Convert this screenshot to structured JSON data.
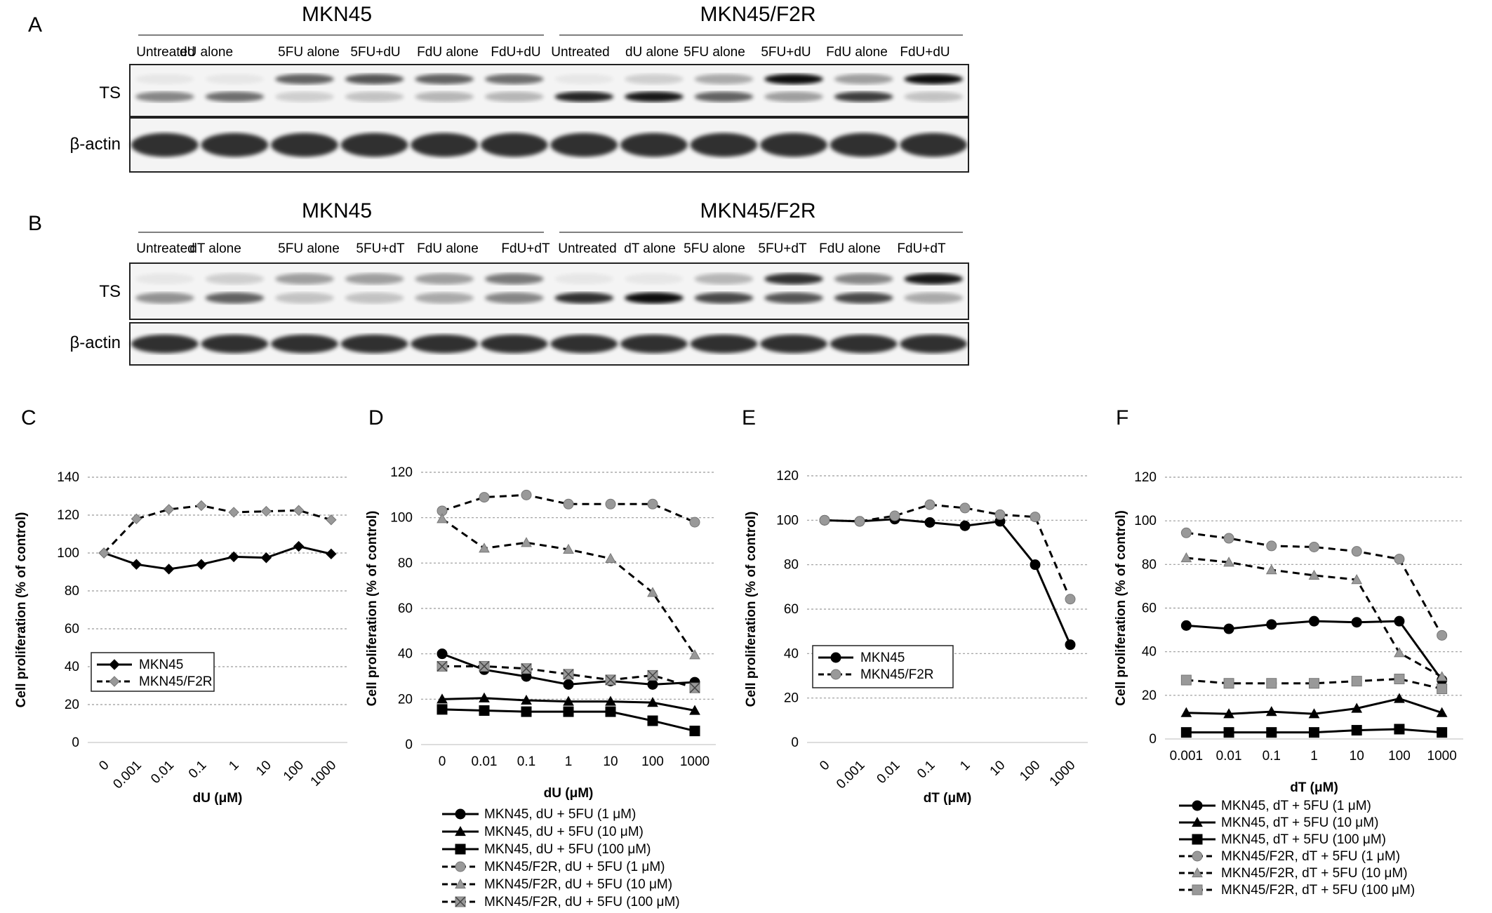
{
  "blots": [
    {
      "panel": "A",
      "groups": [
        "MKN45",
        "MKN45/F2R"
      ],
      "lanes": [
        "Untreated",
        "dU alone",
        "5FU alone",
        "5FU+dU",
        "FdU alone",
        "FdU+dU",
        "Untreated",
        "dU alone",
        "5FU alone",
        "5FU+dU",
        "FdU alone",
        "FdU+dU"
      ],
      "rows": [
        "TS",
        "β-actin"
      ]
    },
    {
      "panel": "B",
      "groups": [
        "MKN45",
        "MKN45/F2R"
      ],
      "lanes": [
        "Untreated",
        "dT alone",
        "5FU alone",
        "5FU+dT",
        "FdU alone",
        "FdU+dT",
        "Untreated",
        "dT alone",
        "5FU alone",
        "5FU+dT",
        "FdU alone",
        "FdU+dT"
      ],
      "rows": [
        "TS",
        "β-actin"
      ]
    }
  ],
  "chart_data": [
    {
      "panel": "C",
      "type": "line",
      "categories": [
        "0",
        "0.001",
        "0.01",
        "0.1",
        "1",
        "10",
        "100",
        "1000"
      ],
      "xlabel": "dU (μM)",
      "ylabel": "Cell proliferation (% of control)",
      "ylim": [
        0,
        140
      ],
      "yticks": [
        0,
        20,
        40,
        60,
        80,
        100,
        120,
        140
      ],
      "grid": true,
      "legend": "bottom-left inside",
      "series": [
        {
          "name": "MKN45",
          "values": [
            100,
            94,
            91.5,
            94,
            98,
            97.5,
            103.5,
            99.5
          ],
          "color": "#000000",
          "dash": false,
          "marker": "diamond"
        },
        {
          "name": "MKN45/F2R",
          "values": [
            100,
            118,
            123,
            125,
            121.5,
            122,
            122.5,
            117.5
          ],
          "color": "#999999",
          "dash": true,
          "marker": "diamond"
        }
      ]
    },
    {
      "panel": "D",
      "type": "line",
      "categories": [
        "0",
        "0.01",
        "0.1",
        "1",
        "10",
        "100",
        "1000"
      ],
      "xlabel": "dU (μM)",
      "ylabel": "Cell proliferation (% of control)",
      "ylim": [
        0,
        120
      ],
      "yticks": [
        0,
        20,
        40,
        60,
        80,
        100,
        120
      ],
      "grid": true,
      "legend": "below",
      "series": [
        {
          "name": "MKN45, dU + 5FU (1 μM)",
          "values": [
            40,
            33,
            30,
            26.5,
            28,
            26.5,
            27.5
          ],
          "color": "#000000",
          "dash": false,
          "marker": "circle"
        },
        {
          "name": "MKN45, dU + 5FU (10 μM)",
          "values": [
            20,
            20.5,
            19.5,
            19,
            19,
            18.5,
            15
          ],
          "color": "#000000",
          "dash": false,
          "marker": "triangle"
        },
        {
          "name": "MKN45, dU + 5FU (100 μM)",
          "values": [
            15.5,
            15,
            14.5,
            14.5,
            14.5,
            10.5,
            6
          ],
          "color": "#000000",
          "dash": false,
          "marker": "square"
        },
        {
          "name": "MKN45/F2R, dU + 5FU (1 μM)",
          "values": [
            103,
            109,
            110,
            106,
            106,
            106,
            98
          ],
          "color": "#999999",
          "dash": true,
          "marker": "circle"
        },
        {
          "name": "MKN45/F2R, dU + 5FU (10 μM)",
          "values": [
            99.5,
            86.5,
            89,
            86,
            82,
            67,
            39.5
          ],
          "color": "#999999",
          "dash": true,
          "marker": "triangle"
        },
        {
          "name": "MKN45/F2R, dU + 5FU (100 μM)",
          "values": [
            34.5,
            34.5,
            33.5,
            31,
            28.5,
            30.5,
            25
          ],
          "color": "#999999",
          "dash": true,
          "marker": "xsquare"
        }
      ]
    },
    {
      "panel": "E",
      "type": "line",
      "categories": [
        "0",
        "0.001",
        "0.01",
        "0.1",
        "1",
        "10",
        "100",
        "1000"
      ],
      "xlabel": "dT (μM)",
      "ylabel": "Cell proliferation (% of control)",
      "ylim": [
        0,
        120
      ],
      "yticks": [
        0,
        20,
        40,
        60,
        80,
        100,
        120
      ],
      "grid": true,
      "legend": "bottom-left inside",
      "series": [
        {
          "name": "MKN45",
          "values": [
            100,
            99.5,
            100.5,
            99,
            97.5,
            99.5,
            80,
            44
          ],
          "color": "#000000",
          "dash": false,
          "marker": "circle"
        },
        {
          "name": "MKN45/F2R",
          "values": [
            100,
            99.5,
            102,
            107,
            105.5,
            102.5,
            101.5,
            64.5
          ],
          "color": "#999999",
          "dash": true,
          "marker": "circle"
        }
      ]
    },
    {
      "panel": "F",
      "type": "line",
      "categories": [
        "0.001",
        "0.01",
        "0.1",
        "1",
        "10",
        "100",
        "1000"
      ],
      "xlabel": "dT (μM)",
      "ylabel": "Cell proliferation (% of control)",
      "ylim": [
        0,
        120
      ],
      "yticks": [
        0,
        20,
        40,
        60,
        80,
        100,
        120
      ],
      "grid": true,
      "legend": "below",
      "series": [
        {
          "name": "MKN45, dT + 5FU (1 μM)",
          "values": [
            52,
            50.5,
            52.5,
            54,
            53.5,
            54,
            27
          ],
          "color": "#000000",
          "dash": false,
          "marker": "circle"
        },
        {
          "name": "MKN45, dT + 5FU (10 μM)",
          "values": [
            12,
            11.5,
            12.5,
            11.5,
            14,
            18.5,
            12
          ],
          "color": "#000000",
          "dash": false,
          "marker": "triangle"
        },
        {
          "name": "MKN45, dT + 5FU (100 μM)",
          "values": [
            3,
            3,
            3,
            3,
            4,
            4.5,
            3
          ],
          "color": "#000000",
          "dash": false,
          "marker": "square"
        },
        {
          "name": "MKN45/F2R, dT + 5FU (1 μM)",
          "values": [
            94.5,
            92,
            88.5,
            88,
            86,
            82.5,
            47.5
          ],
          "color": "#999999",
          "dash": true,
          "marker": "circle"
        },
        {
          "name": "MKN45/F2R, dT + 5FU (10 μM)",
          "values": [
            83,
            81,
            77.5,
            75,
            73,
            39.5,
            28.5
          ],
          "color": "#999999",
          "dash": true,
          "marker": "triangle"
        },
        {
          "name": "MKN45/F2R, dT + 5FU (100 μM)",
          "values": [
            27,
            25.5,
            25.5,
            25.5,
            26.5,
            27.5,
            23
          ],
          "color": "#999999",
          "dash": true,
          "marker": "square"
        }
      ]
    }
  ]
}
